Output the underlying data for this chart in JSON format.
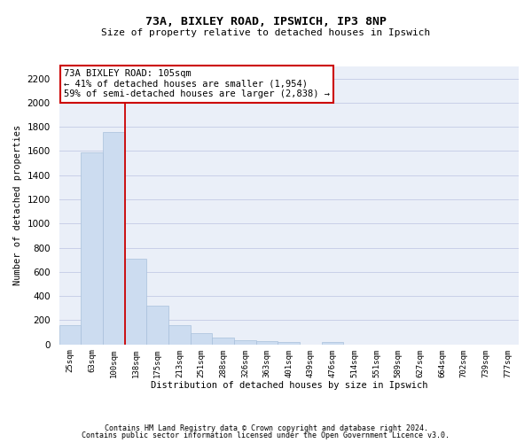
{
  "title1": "73A, BIXLEY ROAD, IPSWICH, IP3 8NP",
  "title2": "Size of property relative to detached houses in Ipswich",
  "xlabel": "Distribution of detached houses by size in Ipswich",
  "ylabel": "Number of detached properties",
  "categories": [
    "25sqm",
    "63sqm",
    "100sqm",
    "138sqm",
    "175sqm",
    "213sqm",
    "251sqm",
    "288sqm",
    "326sqm",
    "363sqm",
    "401sqm",
    "439sqm",
    "476sqm",
    "514sqm",
    "551sqm",
    "589sqm",
    "627sqm",
    "664sqm",
    "702sqm",
    "739sqm",
    "777sqm"
  ],
  "values": [
    160,
    1590,
    1760,
    710,
    320,
    160,
    90,
    55,
    35,
    25,
    20,
    0,
    20,
    0,
    0,
    0,
    0,
    0,
    0,
    0,
    0
  ],
  "bar_color": "#ccdcf0",
  "bar_edge_color": "#a8c0dc",
  "grid_color": "#c8d0e8",
  "background_color": "#eaeff8",
  "annotation_text": "73A BIXLEY ROAD: 105sqm\n← 41% of detached houses are smaller (1,954)\n59% of semi-detached houses are larger (2,838) →",
  "vline_color": "#cc0000",
  "annotation_box_edge": "#cc0000",
  "ylim": [
    0,
    2300
  ],
  "yticks": [
    0,
    200,
    400,
    600,
    800,
    1000,
    1200,
    1400,
    1600,
    1800,
    2000,
    2200
  ],
  "footer1": "Contains HM Land Registry data © Crown copyright and database right 2024.",
  "footer2": "Contains public sector information licensed under the Open Government Licence v3.0."
}
